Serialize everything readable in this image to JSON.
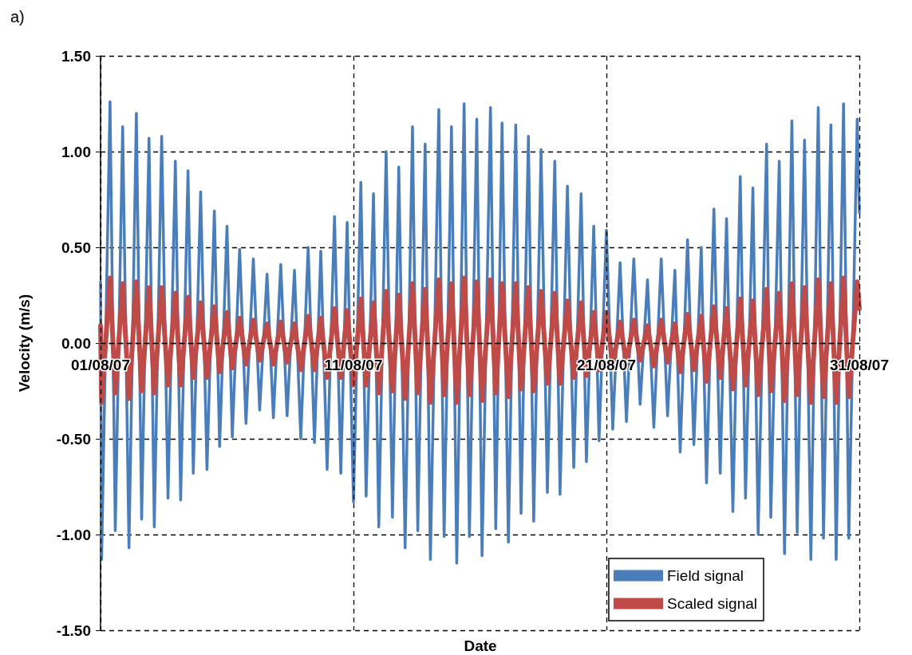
{
  "chart_data": {
    "type": "line",
    "title": "a)",
    "xlabel": "Date",
    "ylabel": "Velocity (m/s)",
    "x": [
      "--08-01T00:00",
      "--08-01T01:00",
      "--08-01T09:00",
      "--08-01T14:00",
      "--08-01T21:00",
      "--08-02T03:00",
      "--08-02T10:00",
      "--08-02T15:00",
      "--08-02T22:00",
      "--08-03T03:00",
      "--08-03T10:00",
      "--08-03T16:00",
      "--08-03T23:00",
      "--08-04T04:00",
      "--08-04T11:00",
      "--08-04T16:00",
      "--08-04T23:00",
      "--08-05T05:00",
      "--08-05T12:00",
      "--08-05T17:00",
      "--08-06T00:00",
      "--08-06T05:00",
      "--08-06T12:00",
      "--08-06T18:00",
      "--08-07T01:00",
      "--08-07T07:00",
      "--08-07T14:00",
      "--08-07T20:00",
      "--08-08T03:00",
      "--08-08T09:00",
      "--08-08T16:00",
      "--08-08T22:00",
      "--08-09T05:00",
      "--08-09T11:00",
      "--08-09T17:00",
      "--08-09T23:00",
      "--08-10T06:00",
      "--08-10T12:00",
      "--08-10T18:00",
      "--08-11T00:00",
      "--08-11T07:00",
      "--08-11T12:00",
      "--08-11T19:00",
      "--08-12T00:00",
      "--08-12T07:00",
      "--08-12T13:00",
      "--08-12T19:00",
      "--08-13T01:00",
      "--08-13T08:00",
      "--08-13T13:00",
      "--08-13T20:00",
      "--08-14T01:00",
      "--08-14T09:00",
      "--08-14T14:00",
      "--08-14T21:00",
      "--08-15T02:00",
      "--08-15T09:00",
      "--08-15T14:00",
      "--08-15T21:00",
      "--08-16T02:00",
      "--08-16T10:00",
      "--08-16T15:00",
      "--08-16T21:00",
      "--08-17T03:00",
      "--08-17T10:00",
      "--08-17T15:00",
      "--08-17T22:00",
      "--08-18T03:00",
      "--08-18T10:00",
      "--08-18T16:00",
      "--08-18T23:00",
      "--08-19T04:00",
      "--08-19T11:00",
      "--08-19T17:00",
      "--08-20T00:00",
      "--08-20T05:00",
      "--08-20T12:00",
      "--08-20T17:00",
      "--08-21T00:00",
      "--08-21T06:00",
      "--08-21T13:00",
      "--08-21T19:00",
      "--08-22T02:00",
      "--08-22T08:00",
      "--08-22T15:00",
      "--08-22T21:00",
      "--08-23T04:00",
      "--08-23T10:00",
      "--08-23T17:00",
      "--08-23T22:00",
      "--08-24T05:00",
      "--08-24T11:00",
      "--08-24T18:00",
      "--08-24T23:00",
      "--08-25T06:00",
      "--08-25T12:00",
      "--08-25T18:00",
      "--08-26T00:00",
      "--08-26T07:00",
      "--08-26T12:00",
      "--08-26T19:00",
      "--08-27T00:00",
      "--08-27T08:00",
      "--08-27T12:00",
      "--08-27T20:00",
      "--08-28T01:00",
      "--08-28T08:00",
      "--08-28T13:00",
      "--08-28T20:00",
      "--08-29T02:00",
      "--08-29T09:00",
      "--08-29T14:00",
      "--08-29T21:00",
      "--08-30T02:00",
      "--08-30T09:00",
      "--08-30T14:00",
      "--08-30T22:00",
      "--08-31T00:00"
    ],
    "series": [
      {
        "name": "Field signal",
        "color": "#4a7ebb",
        "values": [
          0.32,
          -1.13,
          1.26,
          -0.98,
          1.13,
          -1.07,
          1.2,
          -0.92,
          1.07,
          -0.96,
          1.08,
          -0.81,
          0.95,
          -0.82,
          0.9,
          -0.68,
          0.79,
          -0.66,
          0.69,
          -0.54,
          0.61,
          -0.49,
          0.49,
          -0.42,
          0.44,
          -0.35,
          0.36,
          -0.39,
          0.41,
          -0.38,
          0.38,
          -0.5,
          0.5,
          -0.52,
          0.48,
          -0.66,
          0.66,
          -0.68,
          0.63,
          -0.83,
          0.84,
          -0.8,
          0.78,
          -0.96,
          1.0,
          -0.91,
          0.92,
          -1.07,
          1.13,
          -0.98,
          1.04,
          -1.13,
          1.22,
          -1.01,
          1.13,
          -1.15,
          1.25,
          -1.01,
          1.17,
          -1.11,
          1.23,
          -0.97,
          1.15,
          -1.04,
          1.14,
          -0.89,
          1.08,
          -0.93,
          1.01,
          -0.78,
          0.95,
          -0.79,
          0.82,
          -0.65,
          0.78,
          -0.62,
          0.61,
          -0.51,
          0.59,
          -0.45,
          0.42,
          -0.41,
          0.44,
          -0.32,
          0.33,
          -0.44,
          0.44,
          -0.38,
          0.38,
          -0.57,
          0.54,
          -0.53,
          0.5,
          -0.73,
          0.7,
          -0.68,
          0.65,
          -0.88,
          0.87,
          -0.81,
          0.81,
          -1.0,
          1.04,
          -0.91,
          0.95,
          -1.1,
          1.16,
          -0.99,
          1.06,
          -1.13,
          1.23,
          -1.02,
          1.14,
          -1.13,
          1.25,
          -1.02,
          1.17,
          0.68
        ]
      },
      {
        "name": "Scaled signal",
        "color": "#be4b48",
        "values": [
          0.09,
          -0.31,
          0.34,
          -0.26,
          0.31,
          -0.29,
          0.32,
          -0.25,
          0.29,
          -0.26,
          0.29,
          -0.22,
          0.26,
          -0.22,
          0.24,
          -0.18,
          0.21,
          -0.18,
          0.19,
          -0.15,
          0.16,
          -0.13,
          0.13,
          -0.11,
          0.12,
          -0.09,
          0.1,
          -0.11,
          0.11,
          -0.1,
          0.1,
          -0.14,
          0.14,
          -0.14,
          0.13,
          -0.18,
          0.18,
          -0.18,
          0.17,
          -0.22,
          0.23,
          -0.22,
          0.21,
          -0.26,
          0.27,
          -0.25,
          0.25,
          -0.29,
          0.31,
          -0.26,
          0.28,
          -0.31,
          0.33,
          -0.27,
          0.31,
          -0.31,
          0.34,
          -0.27,
          0.32,
          -0.3,
          0.33,
          -0.26,
          0.31,
          -0.28,
          0.31,
          -0.24,
          0.29,
          -0.25,
          0.27,
          -0.21,
          0.26,
          -0.21,
          0.22,
          -0.18,
          0.21,
          -0.17,
          0.16,
          -0.14,
          0.16,
          -0.12,
          0.11,
          -0.11,
          0.12,
          -0.09,
          0.09,
          -0.12,
          0.12,
          -0.1,
          0.1,
          -0.15,
          0.15,
          -0.14,
          0.14,
          -0.2,
          0.19,
          -0.18,
          0.18,
          -0.24,
          0.23,
          -0.22,
          0.22,
          -0.27,
          0.28,
          -0.25,
          0.26,
          -0.3,
          0.31,
          -0.27,
          0.29,
          -0.31,
          0.33,
          -0.28,
          0.31,
          -0.31,
          0.34,
          -0.28,
          0.32,
          0.18
        ]
      }
    ],
    "xlim": [
      "--08-01",
      "--08-31"
    ],
    "xticks": [
      {
        "value": "--08-01",
        "label": "01/08/07"
      },
      {
        "value": "--08-11",
        "label": "11/08/07"
      },
      {
        "value": "--08-21",
        "label": "21/08/07"
      },
      {
        "value": "--08-31",
        "label": "31/08/07"
      }
    ],
    "ylim": [
      -1.5,
      1.5
    ],
    "yticks": [
      {
        "value": -1.5,
        "label": "-1.50"
      },
      {
        "value": -1,
        "label": "-1.00"
      },
      {
        "value": -0.5,
        "label": "-0.50"
      },
      {
        "value": 0,
        "label": "0.00"
      },
      {
        "value": 0.5,
        "label": "0.50"
      },
      {
        "value": 1,
        "label": "1.00"
      },
      {
        "value": 1.5,
        "label": "1.50"
      }
    ],
    "grid": true,
    "legend": "bottom right",
    "marker": "none"
  }
}
